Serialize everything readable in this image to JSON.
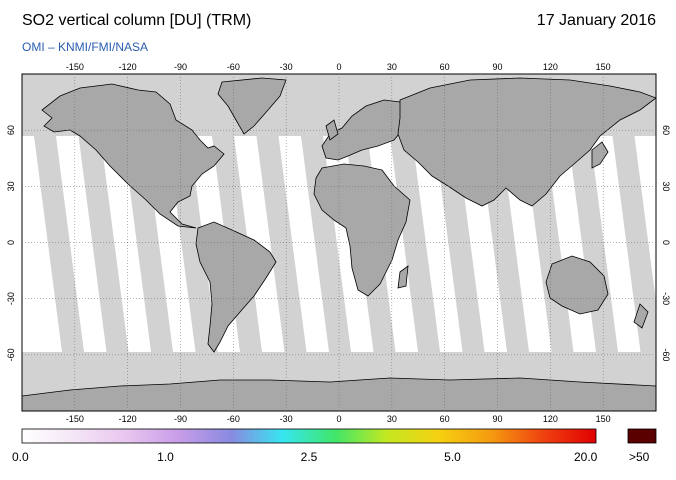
{
  "header": {
    "title": "SO2 vertical column [DU] (TRM)",
    "date": "17 January 2016",
    "credit": "OMI  –  KNMI/FMI/NASA"
  },
  "map": {
    "projection": "equirectangular",
    "lon_range": [
      -180,
      180
    ],
    "lat_range": [
      -90,
      90
    ],
    "lon_ticks": [
      -150,
      -120,
      -90,
      -60,
      -30,
      0,
      30,
      60,
      90,
      120,
      150
    ],
    "lat_ticks": [
      60,
      30,
      0,
      -30,
      -60
    ],
    "colors": {
      "no_data": "#d2d2d2",
      "land_mask": "#a8a8a8",
      "coast": "#000000",
      "background": "#ffffff"
    }
  },
  "colorbar": {
    "labels": [
      "0.0",
      "1.0",
      "2.5",
      "5.0",
      "20.0"
    ],
    "over_label": ">50",
    "over_color": "#5a0000",
    "stops": [
      "#ffffff",
      "#f4e6f6",
      "#e8c6ef",
      "#c89de8",
      "#8a8ae0",
      "#36e6f0",
      "#40e66a",
      "#c4e820",
      "#f6d010",
      "#f59a10",
      "#f04010",
      "#e00000"
    ]
  }
}
